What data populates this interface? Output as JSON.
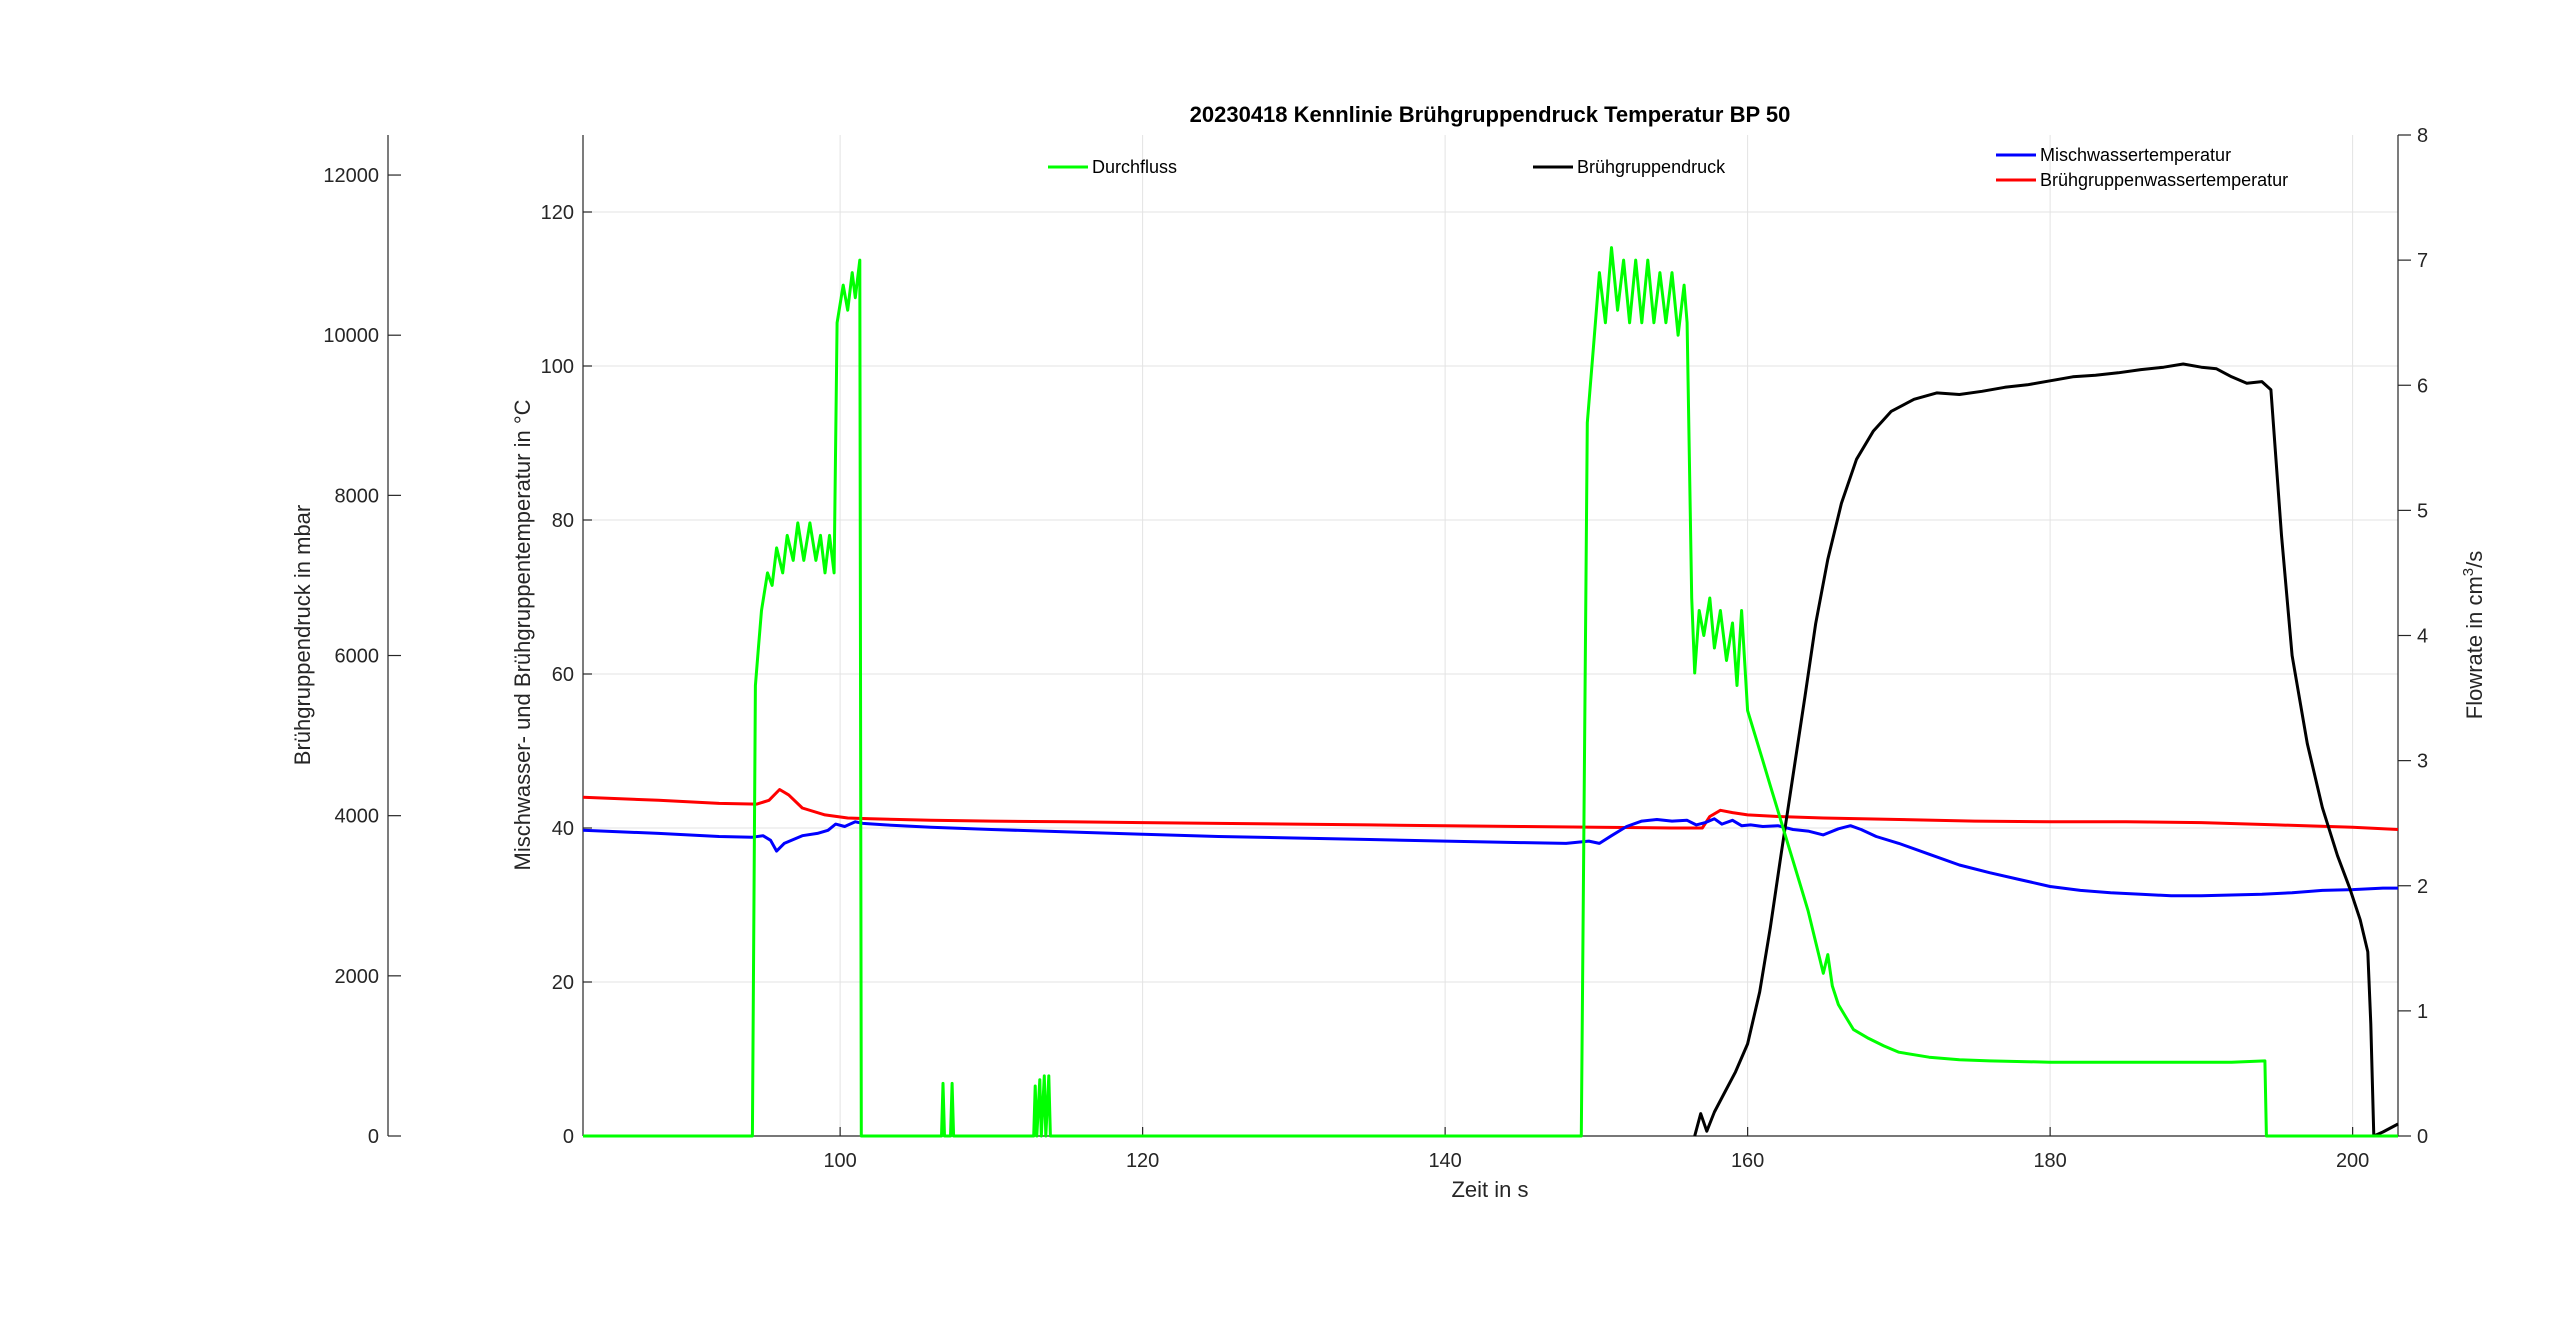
{
  "chart_data": {
    "type": "line",
    "title": "20230418 Kennlinie Brühgruppendruck Temperatur BP 50",
    "xlabel": "Zeit in s",
    "ylabel_left_temp": "Mischwasser- und Brühgruppentemperatur in °C",
    "ylabel_far_left_pressure": "Brühgruppendruck in mbar",
    "ylabel_right_flow": "Flowrate in cm",
    "ylabel_right_flow_sup": "3",
    "ylabel_right_flow_suffix": "/s",
    "xlim": [
      83,
      203
    ],
    "ylim_temp": [
      0,
      130
    ],
    "ylim_pressure": [
      0,
      12500
    ],
    "ylim_flow": [
      0,
      8
    ],
    "grid": true,
    "x_ticks": [
      "100",
      "120",
      "140",
      "160",
      "180",
      "200"
    ],
    "temp_ticks": [
      "0",
      "20",
      "40",
      "60",
      "80",
      "100",
      "120"
    ],
    "pressure_ticks": [
      "0",
      "2000",
      "4000",
      "6000",
      "8000",
      "10000",
      "12000"
    ],
    "flow_ticks": [
      "0",
      "1",
      "2",
      "3",
      "4",
      "5",
      "6",
      "7",
      "8"
    ],
    "legend": {
      "durchfluss": "Durchfluss",
      "bruehgruppendruck": "Brühgruppendruck",
      "mischwasser": "Mischwassertemperatur",
      "bruehgruppenwasser": "Brühgruppenwassertemperatur"
    },
    "series": [
      {
        "name": "Durchfluss",
        "axis": "flow",
        "color": "#00ff00",
        "points": [
          [
            83,
            0
          ],
          [
            94.2,
            0
          ],
          [
            94.4,
            3.6
          ],
          [
            94.6,
            3.9
          ],
          [
            94.8,
            4.2
          ],
          [
            95.2,
            4.5
          ],
          [
            95.5,
            4.4
          ],
          [
            95.8,
            4.7
          ],
          [
            96.2,
            4.5
          ],
          [
            96.5,
            4.8
          ],
          [
            96.9,
            4.6
          ],
          [
            97.2,
            4.9
          ],
          [
            97.6,
            4.6
          ],
          [
            98.0,
            4.9
          ],
          [
            98.4,
            4.6
          ],
          [
            98.7,
            4.8
          ],
          [
            99.0,
            4.5
          ],
          [
            99.3,
            4.8
          ],
          [
            99.6,
            4.5
          ],
          [
            99.8,
            6.5
          ],
          [
            100.2,
            6.8
          ],
          [
            100.5,
            6.6
          ],
          [
            100.8,
            6.9
          ],
          [
            101.0,
            6.7
          ],
          [
            101.3,
            7.0
          ],
          [
            101.4,
            0
          ],
          [
            106.7,
            0
          ],
          [
            106.8,
            0.42
          ],
          [
            106.9,
            0
          ],
          [
            107.3,
            0
          ],
          [
            107.4,
            0.42
          ],
          [
            107.5,
            0
          ],
          [
            112.8,
            0
          ],
          [
            112.9,
            0.4
          ],
          [
            113.0,
            0
          ],
          [
            113.2,
            0.45
          ],
          [
            113.3,
            0
          ],
          [
            113.5,
            0.48
          ],
          [
            113.6,
            0
          ],
          [
            113.8,
            0.48
          ],
          [
            113.9,
            0
          ],
          [
            149.0,
            0
          ],
          [
            149.4,
            5.7
          ],
          [
            149.8,
            6.3
          ],
          [
            150.2,
            6.9
          ],
          [
            150.6,
            6.5
          ],
          [
            151.0,
            7.1
          ],
          [
            151.4,
            6.6
          ],
          [
            151.8,
            7.0
          ],
          [
            152.2,
            6.5
          ],
          [
            152.6,
            7.0
          ],
          [
            153.0,
            6.5
          ],
          [
            153.4,
            7.0
          ],
          [
            153.8,
            6.5
          ],
          [
            154.2,
            6.9
          ],
          [
            154.6,
            6.5
          ],
          [
            155.0,
            6.9
          ],
          [
            155.4,
            6.4
          ],
          [
            155.8,
            6.8
          ],
          [
            156.0,
            6.5
          ],
          [
            156.3,
            4.3
          ],
          [
            156.5,
            3.7
          ],
          [
            156.8,
            4.2
          ],
          [
            157.1,
            4.0
          ],
          [
            157.5,
            4.3
          ],
          [
            157.8,
            3.9
          ],
          [
            158.2,
            4.2
          ],
          [
            158.6,
            3.8
          ],
          [
            159.0,
            4.1
          ],
          [
            159.3,
            3.6
          ],
          [
            159.6,
            4.2
          ],
          [
            160.0,
            3.4
          ],
          [
            160.5,
            3.2
          ],
          [
            161.0,
            3.0
          ],
          [
            161.5,
            2.8
          ],
          [
            162.0,
            2.6
          ],
          [
            162.5,
            2.4
          ],
          [
            163.0,
            2.2
          ],
          [
            163.5,
            2.0
          ],
          [
            164.0,
            1.8
          ],
          [
            164.5,
            1.55
          ],
          [
            165.0,
            1.3
          ],
          [
            165.3,
            1.45
          ],
          [
            165.6,
            1.2
          ],
          [
            166.0,
            1.05
          ],
          [
            166.5,
            0.95
          ],
          [
            167.0,
            0.85
          ],
          [
            168.0,
            0.78
          ],
          [
            169.0,
            0.72
          ],
          [
            170.0,
            0.67
          ],
          [
            172.0,
            0.63
          ],
          [
            174.0,
            0.61
          ],
          [
            176.0,
            0.6
          ],
          [
            180.0,
            0.59
          ],
          [
            184.0,
            0.59
          ],
          [
            188.0,
            0.59
          ],
          [
            192.0,
            0.59
          ],
          [
            194.2,
            0.6
          ],
          [
            194.3,
            0
          ],
          [
            203,
            0
          ]
        ]
      },
      {
        "name": "Brühgruppendruck",
        "axis": "pressure",
        "color": "#000000",
        "points": [
          [
            156.5,
            0
          ],
          [
            156.9,
            280
          ],
          [
            157.3,
            60
          ],
          [
            157.8,
            300
          ],
          [
            158.5,
            550
          ],
          [
            159.2,
            800
          ],
          [
            160.0,
            1150
          ],
          [
            160.8,
            1800
          ],
          [
            161.5,
            2600
          ],
          [
            162.2,
            3500
          ],
          [
            163.0,
            4500
          ],
          [
            163.8,
            5500
          ],
          [
            164.5,
            6400
          ],
          [
            165.3,
            7200
          ],
          [
            166.2,
            7900
          ],
          [
            167.2,
            8450
          ],
          [
            168.3,
            8800
          ],
          [
            169.5,
            9050
          ],
          [
            171.0,
            9200
          ],
          [
            172.5,
            9280
          ],
          [
            174.0,
            9260
          ],
          [
            175.5,
            9300
          ],
          [
            177.0,
            9350
          ],
          [
            178.5,
            9380
          ],
          [
            180.0,
            9430
          ],
          [
            181.5,
            9480
          ],
          [
            183.0,
            9500
          ],
          [
            184.5,
            9530
          ],
          [
            186.0,
            9570
          ],
          [
            187.5,
            9600
          ],
          [
            188.8,
            9640
          ],
          [
            190.0,
            9600
          ],
          [
            191.0,
            9580
          ],
          [
            192.0,
            9480
          ],
          [
            193.0,
            9400
          ],
          [
            194.0,
            9420
          ],
          [
            194.6,
            9320
          ],
          [
            195.3,
            7500
          ],
          [
            196.0,
            6000
          ],
          [
            197.0,
            4900
          ],
          [
            198.0,
            4100
          ],
          [
            199.0,
            3500
          ],
          [
            199.8,
            3100
          ],
          [
            200.5,
            2700
          ],
          [
            201.0,
            2300
          ],
          [
            201.2,
            1400
          ],
          [
            201.4,
            0
          ],
          [
            202.0,
            50
          ],
          [
            203,
            150
          ]
        ]
      },
      {
        "name": "Mischwassertemperatur",
        "axis": "temp",
        "color": "#0000ff",
        "points": [
          [
            83,
            39.7
          ],
          [
            88,
            39.3
          ],
          [
            92,
            38.9
          ],
          [
            94.2,
            38.8
          ],
          [
            94.9,
            39.0
          ],
          [
            95.4,
            38.4
          ],
          [
            95.8,
            37.0
          ],
          [
            96.3,
            38.0
          ],
          [
            97.5,
            39.0
          ],
          [
            98.5,
            39.3
          ],
          [
            99.2,
            39.7
          ],
          [
            99.7,
            40.5
          ],
          [
            100.3,
            40.2
          ],
          [
            101.0,
            40.8
          ],
          [
            101.5,
            40.6
          ],
          [
            103,
            40.4
          ],
          [
            106,
            40.1
          ],
          [
            110,
            39.8
          ],
          [
            115,
            39.5
          ],
          [
            120,
            39.2
          ],
          [
            125,
            38.9
          ],
          [
            130,
            38.7
          ],
          [
            135,
            38.5
          ],
          [
            140,
            38.3
          ],
          [
            145,
            38.1
          ],
          [
            148,
            38.0
          ],
          [
            149.5,
            38.3
          ],
          [
            150.2,
            38.0
          ],
          [
            151.0,
            39.0
          ],
          [
            152.0,
            40.2
          ],
          [
            153.0,
            40.9
          ],
          [
            154.0,
            41.1
          ],
          [
            155.0,
            40.9
          ],
          [
            156.0,
            41.0
          ],
          [
            156.6,
            40.4
          ],
          [
            157.2,
            40.7
          ],
          [
            157.8,
            41.2
          ],
          [
            158.3,
            40.5
          ],
          [
            159.0,
            41.0
          ],
          [
            159.6,
            40.3
          ],
          [
            160.2,
            40.4
          ],
          [
            161.0,
            40.2
          ],
          [
            162.0,
            40.3
          ],
          [
            163.0,
            39.8
          ],
          [
            164.0,
            39.6
          ],
          [
            165.0,
            39.1
          ],
          [
            166.0,
            39.9
          ],
          [
            166.8,
            40.3
          ],
          [
            167.5,
            39.8
          ],
          [
            168.5,
            38.9
          ],
          [
            170,
            38.0
          ],
          [
            172,
            36.6
          ],
          [
            174,
            35.2
          ],
          [
            176,
            34.2
          ],
          [
            178,
            33.3
          ],
          [
            180,
            32.4
          ],
          [
            182,
            31.9
          ],
          [
            184,
            31.6
          ],
          [
            186,
            31.4
          ],
          [
            188,
            31.2
          ],
          [
            190,
            31.2
          ],
          [
            192,
            31.3
          ],
          [
            194,
            31.4
          ],
          [
            196,
            31.6
          ],
          [
            198,
            31.9
          ],
          [
            200,
            32.0
          ],
          [
            202,
            32.2
          ],
          [
            203,
            32.2
          ]
        ]
      },
      {
        "name": "Brühgruppenwassertemperatur",
        "axis": "temp",
        "color": "#ff0000",
        "points": [
          [
            83,
            44.0
          ],
          [
            88,
            43.6
          ],
          [
            92,
            43.2
          ],
          [
            94.5,
            43.1
          ],
          [
            95.3,
            43.6
          ],
          [
            96.0,
            45.0
          ],
          [
            96.6,
            44.3
          ],
          [
            97.5,
            42.6
          ],
          [
            99.0,
            41.7
          ],
          [
            100.5,
            41.3
          ],
          [
            102,
            41.2
          ],
          [
            106,
            41.0
          ],
          [
            110,
            40.9
          ],
          [
            115,
            40.8
          ],
          [
            120,
            40.7
          ],
          [
            125,
            40.6
          ],
          [
            130,
            40.5
          ],
          [
            135,
            40.4
          ],
          [
            140,
            40.3
          ],
          [
            145,
            40.2
          ],
          [
            150,
            40.1
          ],
          [
            155,
            40.0
          ],
          [
            157.0,
            40.0
          ],
          [
            157.5,
            41.5
          ],
          [
            158.2,
            42.3
          ],
          [
            159.0,
            42.0
          ],
          [
            160.0,
            41.7
          ],
          [
            162.0,
            41.5
          ],
          [
            165.0,
            41.3
          ],
          [
            170,
            41.1
          ],
          [
            175,
            40.9
          ],
          [
            180,
            40.8
          ],
          [
            185,
            40.8
          ],
          [
            190,
            40.7
          ],
          [
            195,
            40.4
          ],
          [
            200,
            40.1
          ],
          [
            203,
            39.8
          ]
        ]
      }
    ]
  }
}
